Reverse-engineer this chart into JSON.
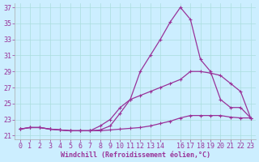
{
  "xlabel": "Windchill (Refroidissement éolien,°C)",
  "background_color": "#cceeff",
  "line_color": "#993399",
  "xlim": [
    -0.5,
    23.5
  ],
  "ylim": [
    20.5,
    37.5
  ],
  "yticks": [
    21,
    23,
    25,
    27,
    29,
    31,
    33,
    35,
    37
  ],
  "xticks": [
    0,
    1,
    2,
    3,
    4,
    5,
    6,
    7,
    8,
    9,
    10,
    11,
    12,
    13,
    14,
    16,
    17,
    18,
    19,
    20,
    21,
    22,
    23
  ],
  "line1_x": [
    0,
    1,
    2,
    3,
    4,
    5,
    6,
    7,
    8,
    9,
    10,
    11,
    12,
    13,
    14,
    15,
    16,
    17,
    18,
    19,
    20,
    21,
    22,
    23
  ],
  "line1_y": [
    21.8,
    22.0,
    22.0,
    21.8,
    21.7,
    21.6,
    21.6,
    21.6,
    21.6,
    21.7,
    21.8,
    21.9,
    22.0,
    22.2,
    22.5,
    22.8,
    23.2,
    23.5,
    23.5,
    23.5,
    23.5,
    23.3,
    23.2,
    23.2
  ],
  "line2_x": [
    0,
    1,
    2,
    3,
    4,
    5,
    6,
    7,
    8,
    9,
    10,
    11,
    12,
    13,
    14,
    15,
    16,
    17,
    18,
    19,
    20,
    21,
    22,
    23
  ],
  "line2_y": [
    21.8,
    22.0,
    22.0,
    21.8,
    21.7,
    21.6,
    21.6,
    21.6,
    22.2,
    23.0,
    24.5,
    25.5,
    26.0,
    26.5,
    27.0,
    27.5,
    28.0,
    29.0,
    29.0,
    28.8,
    28.5,
    27.5,
    26.5,
    23.2
  ],
  "line3_x": [
    0,
    1,
    2,
    3,
    4,
    5,
    6,
    7,
    8,
    9,
    10,
    11,
    12,
    13,
    14,
    15,
    16,
    17,
    18,
    19,
    20,
    21,
    22,
    23
  ],
  "line3_y": [
    21.8,
    22.0,
    22.0,
    21.8,
    21.7,
    21.6,
    21.6,
    21.6,
    21.7,
    22.2,
    23.8,
    25.5,
    29.0,
    31.0,
    33.0,
    35.2,
    37.0,
    35.5,
    30.5,
    29.0,
    25.5,
    24.5,
    24.5,
    23.2
  ],
  "marker": "+",
  "markersize": 3,
  "linewidth": 0.9,
  "grid_color": "#aadddd",
  "font_color": "#993399",
  "font_family": "monospace",
  "tick_fontsize": 6,
  "xlabel_fontsize": 6
}
